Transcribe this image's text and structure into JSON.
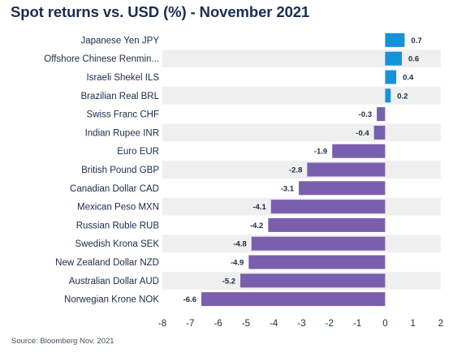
{
  "title": "Spot returns vs. USD (%) - November 2021",
  "source": "Source: Bloomberg Nov. 2021",
  "colors": {
    "positive": "#1493d8",
    "negative": "#7a5fae",
    "band": "#efefef",
    "text": "#1b2a49"
  },
  "chart_data": {
    "type": "bar",
    "orientation": "horizontal",
    "title": "Spot returns vs. USD (%) - November 2021",
    "xlabel": "",
    "ylabel": "",
    "xlim": [
      -8,
      2
    ],
    "xticks": [
      "-8",
      "-7",
      "-6",
      "-5",
      "-4",
      "-3",
      "-2",
      "-1",
      "0",
      "1",
      "2"
    ],
    "grid": false,
    "categories": [
      "Japanese Yen JPY",
      "Offshore Chinese Renmin...",
      "Israeli Shekel ILS",
      "Brazilian Real BRL",
      "Swiss Franc CHF",
      "Indian Rupee INR",
      "Euro EUR",
      "British Pound GBP",
      "Canadian Dollar CAD",
      "Mexican Peso MXN",
      "Russian Ruble RUB",
      "Swedish Krona SEK",
      "New Zealand Dollar NZD",
      "Australian Dollar AUD",
      "Norwegian Krone NOK"
    ],
    "values": [
      0.7,
      0.6,
      0.4,
      0.2,
      -0.3,
      -0.4,
      -1.9,
      -2.8,
      -3.1,
      -4.1,
      -4.2,
      -4.8,
      -4.9,
      -5.2,
      -6.6
    ],
    "data_labels": [
      "0.7",
      "0.6",
      "0.4",
      "0.2",
      "-0.3",
      "-0.4",
      "-1.9",
      "-2.8",
      "-3.1",
      "-4.1",
      "-4.2",
      "-4.8",
      "-4.9",
      "-5.2",
      "-6.6"
    ]
  }
}
